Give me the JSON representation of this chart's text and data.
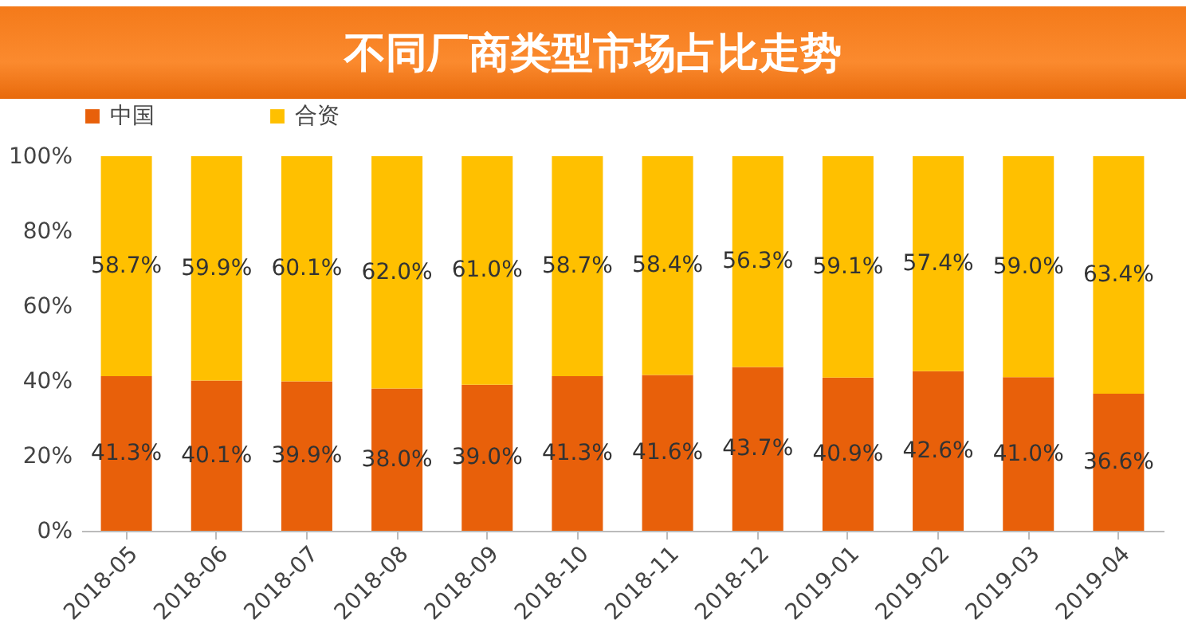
{
  "chart_data": {
    "type": "bar",
    "title": "不同厂商类型市场占比走势",
    "stacked": true,
    "legend": "top",
    "grid": false,
    "categories": [
      "2018-05",
      "2018-06",
      "2018-07",
      "2018-08",
      "2018-09",
      "2018-10",
      "2018-11",
      "2018-12",
      "2019-01",
      "2019-02",
      "2019-03",
      "2019-04"
    ],
    "ylim": [
      0,
      100
    ],
    "yticks": [
      {
        "value": 0,
        "label": "0%"
      },
      {
        "value": 20,
        "label": "20%"
      },
      {
        "value": 40,
        "label": "40%"
      },
      {
        "value": 60,
        "label": "60%"
      },
      {
        "value": 80,
        "label": "80%"
      },
      {
        "value": 100,
        "label": "100%"
      }
    ],
    "series": [
      {
        "name": "中国",
        "color": "#e8600a",
        "values": [
          41.3,
          40.1,
          39.9,
          38.0,
          39.0,
          41.3,
          41.6,
          43.7,
          40.9,
          42.6,
          41.0,
          36.6
        ],
        "value_labels": [
          "41.3%",
          "40.1%",
          "39.9%",
          "38.0%",
          "39.0%",
          "41.3%",
          "41.6%",
          "43.7%",
          "40.9%",
          "42.6%",
          "41.0%",
          "36.6%"
        ]
      },
      {
        "name": "合资",
        "color": "#ffc000",
        "values": [
          58.7,
          59.9,
          60.1,
          62.0,
          61.0,
          58.7,
          58.4,
          56.3,
          59.1,
          57.4,
          59.0,
          63.4
        ],
        "value_labels": [
          "58.7%",
          "59.9%",
          "60.1%",
          "62.0%",
          "61.0%",
          "58.7%",
          "58.4%",
          "56.3%",
          "59.1%",
          "57.4%",
          "59.0%",
          "63.4%"
        ]
      }
    ]
  }
}
